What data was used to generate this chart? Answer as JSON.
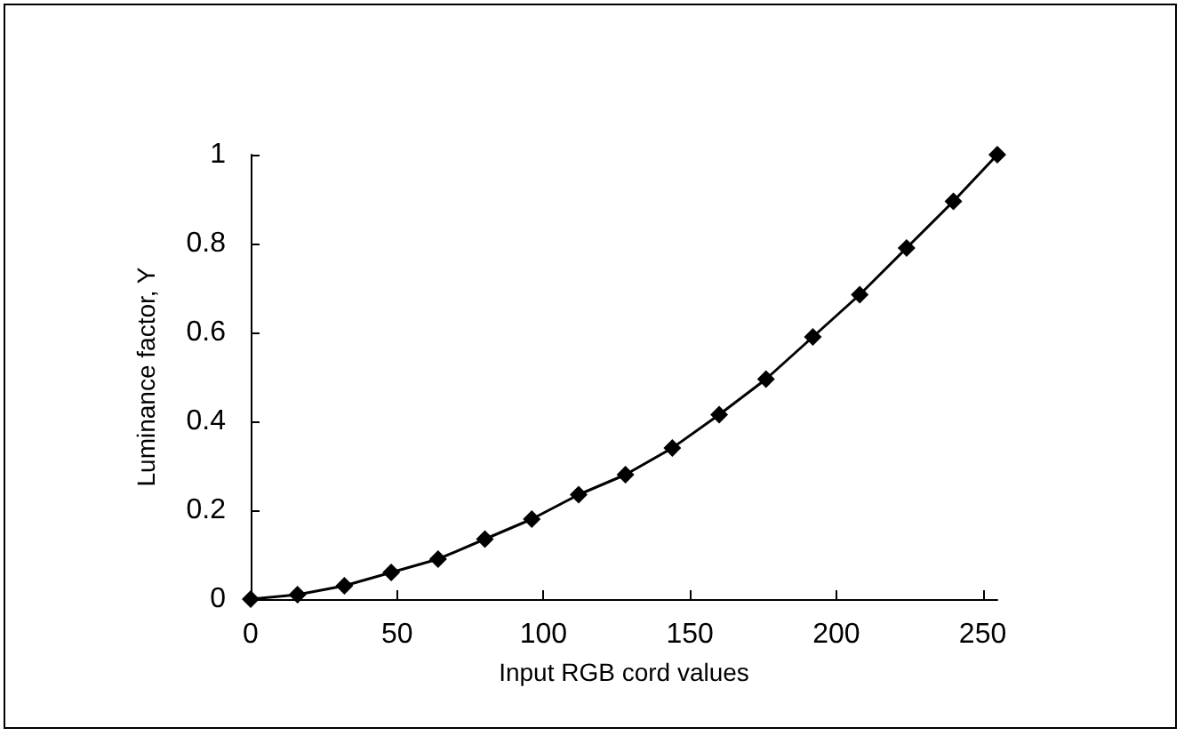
{
  "chart_data": {
    "type": "line",
    "xlabel": "Input RGB cord values",
    "ylabel": "Luminance factor, Y",
    "x": [
      0,
      16,
      32,
      48,
      64,
      80,
      96,
      112,
      128,
      144,
      160,
      176,
      192,
      208,
      224,
      240,
      255
    ],
    "series": [
      {
        "color": "#000000",
        "values": [
          0,
          0.01,
          0.03,
          0.06,
          0.09,
          0.135,
          0.18,
          0.235,
          0.28,
          0.34,
          0.415,
          0.495,
          0.59,
          0.685,
          0.79,
          0.895,
          1
        ]
      }
    ],
    "xlim": [
      0,
      255
    ],
    "xticks": [
      0,
      50,
      100,
      150,
      200,
      250
    ],
    "ylim": [
      0,
      1
    ],
    "yticks": [
      0,
      0.2,
      0.4,
      0.6,
      0.8,
      1
    ],
    "grid": false,
    "marker": "diamond",
    "line_style": "solid"
  }
}
